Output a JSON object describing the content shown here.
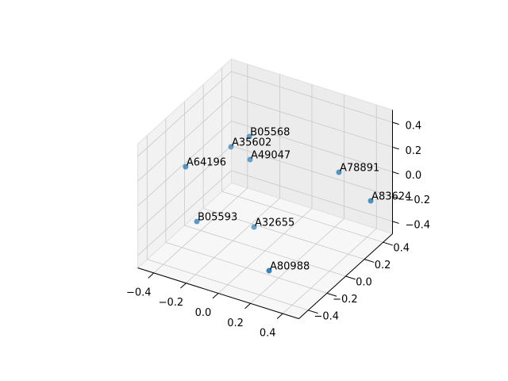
{
  "chart_data": {
    "type": "scatter3d",
    "labels": [
      "B05568",
      "A35602",
      "A49047",
      "A64196",
      "A78891",
      "A83624",
      "B05593",
      "A32655",
      "A80988"
    ],
    "x": [
      -0.15,
      -0.245,
      -0.156,
      -0.29,
      0.318,
      0.484,
      -0.275,
      -0.109,
      0.245
    ],
    "y": [
      0.09,
      0.057,
      0.107,
      -0.35,
      0.241,
      0.295,
      -0.256,
      0.069,
      -0.379
    ],
    "z": [
      0.3,
      0.2,
      0.1,
      0.3,
      0.1,
      -0.1,
      -0.2,
      -0.4,
      -0.3
    ],
    "color": "#1f77b4",
    "xlim": [
      -0.5,
      0.5
    ],
    "ylim": [
      -0.5,
      0.5
    ],
    "zlim": [
      -0.5,
      0.5
    ],
    "xticks": [
      {
        "value": -0.4,
        "label": "−0.4"
      },
      {
        "value": -0.2,
        "label": "−0.2"
      },
      {
        "value": 0,
        "label": "0.0"
      },
      0.2,
      0.4
    ],
    "yticks": [
      {
        "value": -0.4,
        "label": "−0.4"
      },
      {
        "value": -0.2,
        "label": "−0.2"
      },
      {
        "value": 0,
        "label": "0.0"
      },
      0.2,
      0.4
    ],
    "zticks": [
      {
        "value": -0.4,
        "label": "−0.4"
      },
      {
        "value": -0.2,
        "label": "−0.2"
      },
      {
        "value": 0,
        "label": "0.0"
      },
      0.2,
      0.4
    ],
    "grid": true
  }
}
